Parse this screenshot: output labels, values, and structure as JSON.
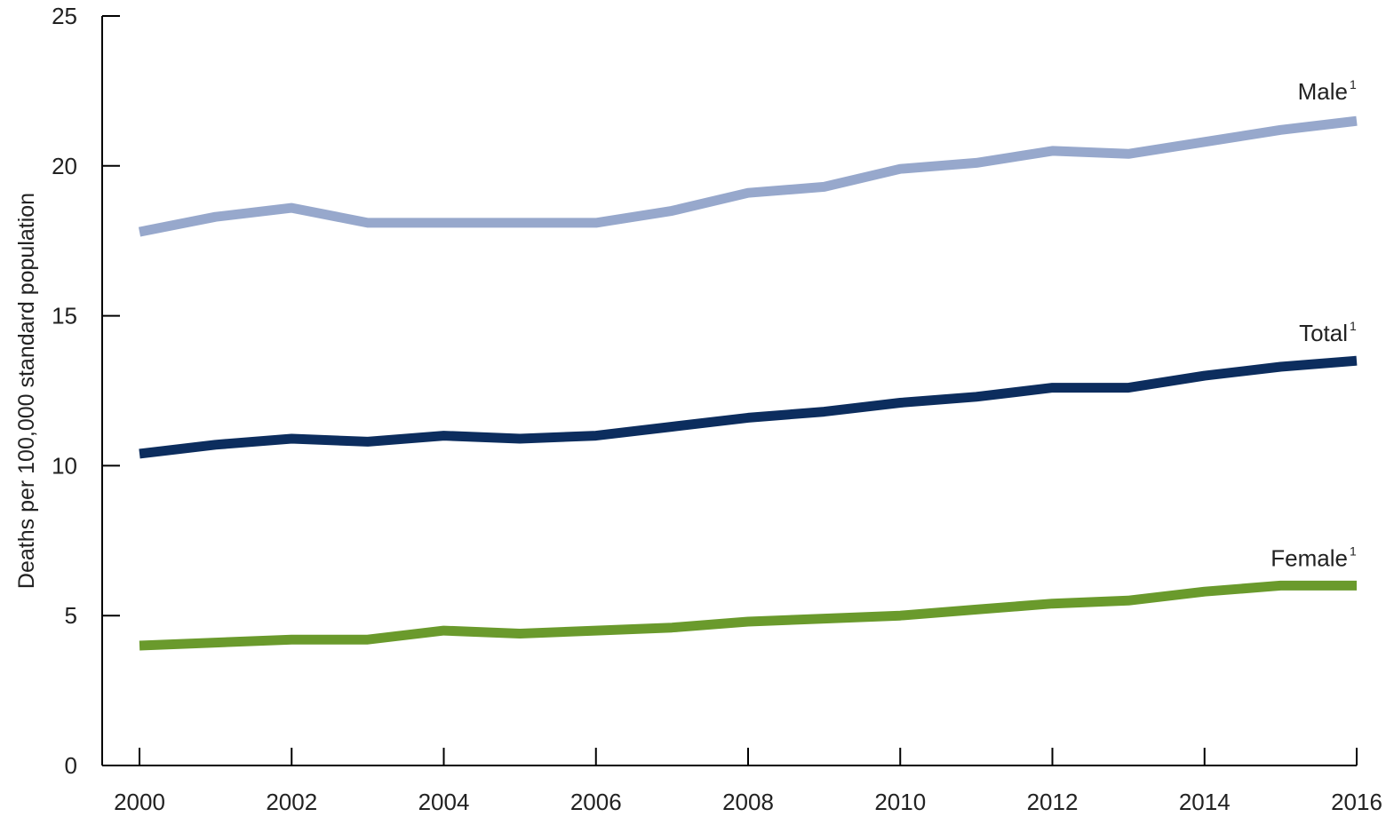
{
  "chart_data": {
    "type": "line",
    "title": "",
    "xlabel": "",
    "ylabel": "Deaths per 100,000 standard population",
    "xlim": [
      2000,
      2016
    ],
    "ylim": [
      0,
      25
    ],
    "x_ticks": [
      2000,
      2002,
      2004,
      2006,
      2008,
      2010,
      2012,
      2014,
      2016
    ],
    "y_ticks": [
      0,
      5,
      10,
      15,
      20,
      25
    ],
    "grid": false,
    "legend": "none (series labeled directly at right end of lines)",
    "x": [
      2000,
      2001,
      2002,
      2003,
      2004,
      2005,
      2006,
      2007,
      2008,
      2009,
      2010,
      2011,
      2012,
      2013,
      2014,
      2015,
      2016
    ],
    "series": [
      {
        "name": "Male",
        "label_suffix": "1",
        "color": "#97a8cc",
        "values": [
          17.8,
          18.3,
          18.6,
          18.1,
          18.1,
          18.1,
          18.1,
          18.5,
          19.1,
          19.3,
          19.9,
          20.1,
          20.5,
          20.4,
          20.8,
          21.2,
          21.5
        ]
      },
      {
        "name": "Total",
        "label_suffix": "1",
        "color": "#0c2d5e",
        "values": [
          10.4,
          10.7,
          10.9,
          10.8,
          11.0,
          10.9,
          11.0,
          11.3,
          11.6,
          11.8,
          12.1,
          12.3,
          12.6,
          12.6,
          13.0,
          13.3,
          13.5
        ]
      },
      {
        "name": "Female",
        "label_suffix": "1",
        "color": "#6a9a2c",
        "values": [
          4.0,
          4.1,
          4.2,
          4.2,
          4.5,
          4.4,
          4.5,
          4.6,
          4.8,
          4.9,
          5.0,
          5.2,
          5.4,
          5.5,
          5.8,
          6.0,
          6.0
        ]
      }
    ]
  }
}
